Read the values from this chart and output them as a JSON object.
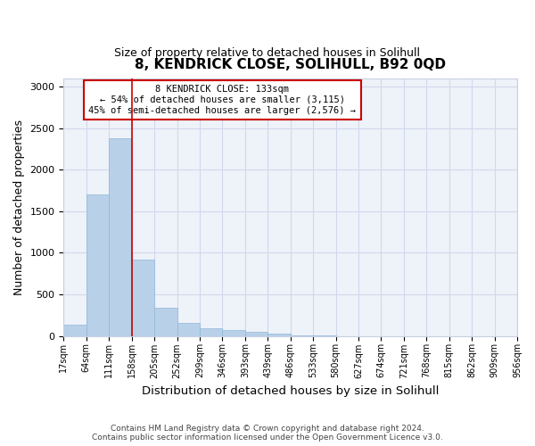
{
  "title": "8, KENDRICK CLOSE, SOLIHULL, B92 0QD",
  "subtitle": "Size of property relative to detached houses in Solihull",
  "xlabel": "Distribution of detached houses by size in Solihull",
  "ylabel": "Number of detached properties",
  "bar_values": [
    140,
    1700,
    2380,
    920,
    340,
    160,
    90,
    70,
    50,
    30,
    5,
    3,
    0,
    0,
    0,
    0,
    0,
    0,
    0,
    0
  ],
  "bar_edge_labels": [
    "17sqm",
    "64sqm",
    "111sqm",
    "158sqm",
    "205sqm",
    "252sqm",
    "299sqm",
    "346sqm",
    "393sqm",
    "439sqm",
    "486sqm",
    "533sqm",
    "580sqm",
    "627sqm",
    "674sqm",
    "721sqm",
    "768sqm",
    "815sqm",
    "862sqm",
    "909sqm",
    "956sqm"
  ],
  "bar_color": "#b8d0e8",
  "bar_edge_color": "#90b8d8",
  "grid_color": "#d0d8ec",
  "background_color": "#eef2f9",
  "vline_position": 3,
  "vline_color": "#cc0000",
  "annotation_line1": "8 KENDRICK CLOSE: 133sqm",
  "annotation_line2": "← 54% of detached houses are smaller (3,115)",
  "annotation_line3": "45% of semi-detached houses are larger (2,576) →",
  "annotation_box_edgecolor": "#cc0000",
  "ylim_max": 3100,
  "yticks": [
    0,
    500,
    1000,
    1500,
    2000,
    2500,
    3000
  ],
  "footer": "Contains HM Land Registry data © Crown copyright and database right 2024.\nContains public sector information licensed under the Open Government Licence v3.0."
}
